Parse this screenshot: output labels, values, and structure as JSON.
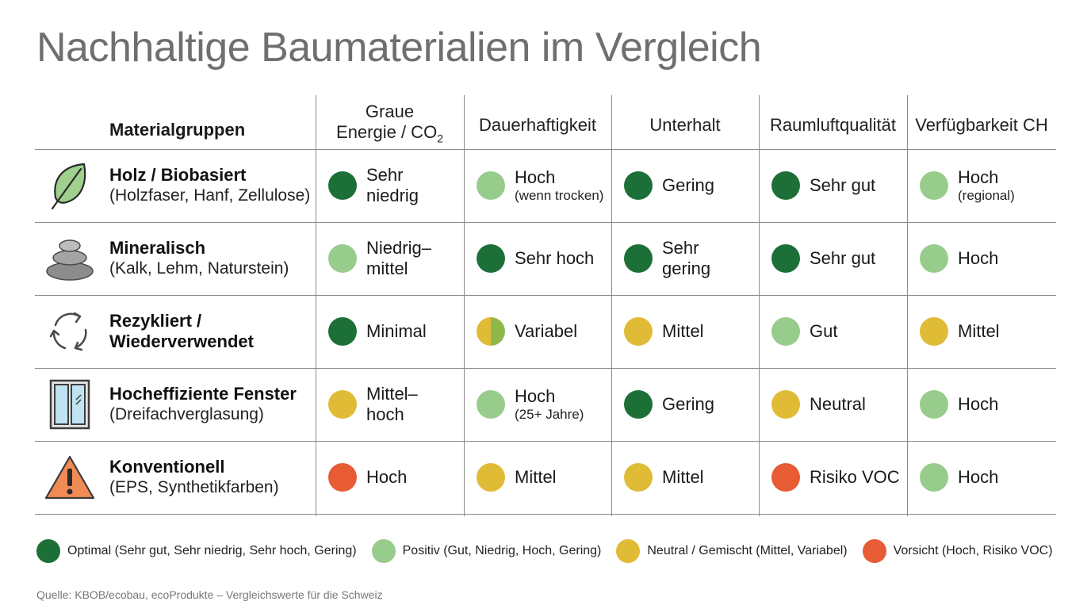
{
  "title": "Nachhaltige Baumaterialien im Vergleich",
  "colors": {
    "optimal": "#1d6f38",
    "positiv": "#98cc8c",
    "neutral": "#e0bb36",
    "vorsicht": "#e75b35",
    "gemischt_gruen": "#8fb84a"
  },
  "chart_data": {
    "type": "table",
    "header": {
      "group_label": "Materialgruppen",
      "columns": [
        {
          "line1": "Graue",
          "line2": "Energie / CO",
          "sub": "2"
        },
        {
          "line1": "",
          "line2": "Dauerhaftigkeit",
          "sub": ""
        },
        {
          "line1": "",
          "line2": "Unterhalt",
          "sub": ""
        },
        {
          "line1": "",
          "line2": "Raumluftqualität",
          "sub": ""
        },
        {
          "line1": "",
          "line2": "Verfügbarkeit CH",
          "sub": ""
        }
      ]
    },
    "rows": [
      {
        "icon": "leaf-icon",
        "name": "Holz / Biobasiert",
        "sub": "(Holzfaser, Hanf, Zellulose)",
        "cells": [
          {
            "text": "Sehr\nniedrig",
            "note": "",
            "rating": "optimal"
          },
          {
            "text": "Hoch",
            "note": "(wenn trocken)",
            "rating": "positiv"
          },
          {
            "text": "Gering",
            "note": "",
            "rating": "optimal"
          },
          {
            "text": "Sehr gut",
            "note": "",
            "rating": "optimal"
          },
          {
            "text": "Hoch",
            "note": "(regional)",
            "rating": "positiv"
          }
        ]
      },
      {
        "icon": "stacked-stones-icon",
        "name": "Mineralisch",
        "sub": "(Kalk, Lehm, Naturstein)",
        "cells": [
          {
            "text": "Niedrig–\nmittel",
            "note": "",
            "rating": "positiv"
          },
          {
            "text": "Sehr hoch",
            "note": "",
            "rating": "optimal"
          },
          {
            "text": "Sehr\ngering",
            "note": "",
            "rating": "optimal"
          },
          {
            "text": "Sehr gut",
            "note": "",
            "rating": "optimal"
          },
          {
            "text": "Hoch",
            "note": "",
            "rating": "positiv"
          }
        ]
      },
      {
        "icon": "recycle-arrows-icon",
        "name": "Rezykliert /\nWiederverwendet",
        "sub": "",
        "cells": [
          {
            "text": "Minimal",
            "note": "",
            "rating": "optimal"
          },
          {
            "text": "Variabel",
            "note": "",
            "rating": "gemischt"
          },
          {
            "text": "Mittel",
            "note": "",
            "rating": "neutral"
          },
          {
            "text": "Gut",
            "note": "",
            "rating": "positiv"
          },
          {
            "text": "Mittel",
            "note": "",
            "rating": "neutral"
          }
        ]
      },
      {
        "icon": "window-icon",
        "name": "Hocheffiziente Fenster",
        "sub": "(Dreifachverglasung)",
        "cells": [
          {
            "text": "Mittel–\nhoch",
            "note": "",
            "rating": "neutral"
          },
          {
            "text": "Hoch",
            "note": "(25+ Jahre)",
            "rating": "positiv"
          },
          {
            "text": "Gering",
            "note": "",
            "rating": "optimal"
          },
          {
            "text": "Neutral",
            "note": "",
            "rating": "neutral"
          },
          {
            "text": "Hoch",
            "note": "",
            "rating": "positiv"
          }
        ]
      },
      {
        "icon": "warning-triangle-icon",
        "name": "Konventionell",
        "sub": "(EPS, Synthetikfarben)",
        "cells": [
          {
            "text": "Hoch",
            "note": "",
            "rating": "vorsicht"
          },
          {
            "text": "Mittel",
            "note": "",
            "rating": "neutral"
          },
          {
            "text": "Mittel",
            "note": "",
            "rating": "neutral"
          },
          {
            "text": "Risiko VOC",
            "note": "",
            "rating": "vorsicht"
          },
          {
            "text": "Hoch",
            "note": "",
            "rating": "positiv"
          }
        ]
      }
    ],
    "legend": [
      {
        "rating": "optimal",
        "label": "Optimal (Sehr gut, Sehr niedrig, Sehr hoch, Gering)"
      },
      {
        "rating": "positiv",
        "label": "Positiv (Gut, Niedrig, Hoch, Gering)"
      },
      {
        "rating": "neutral",
        "label": "Neutral / Gemischt (Mittel, Variabel)"
      },
      {
        "rating": "vorsicht",
        "label": "Vorsicht (Hoch, Risiko VOC)"
      }
    ]
  },
  "source": "Quelle: KBOB/ecobau, ecoProdukte – Vergleichswerte für die Schweiz"
}
